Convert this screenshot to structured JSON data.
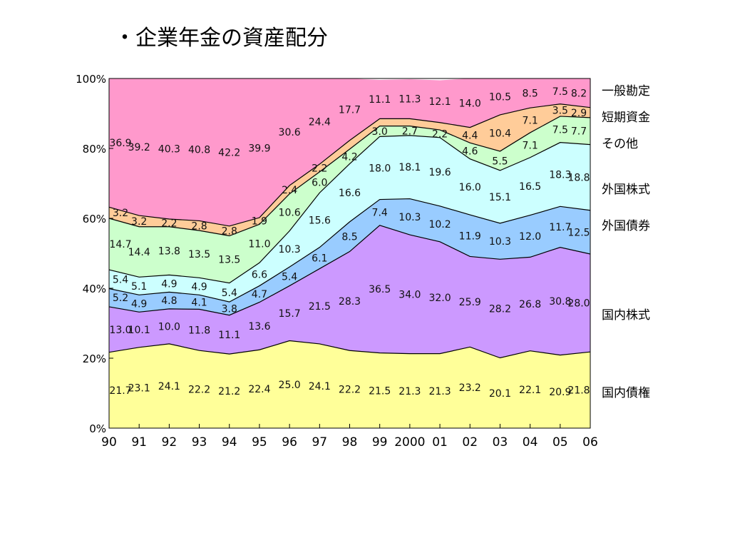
{
  "slide": {
    "title": "・企業年金の資産配分"
  },
  "chart_data": {
    "type": "area",
    "stacked": true,
    "title": "",
    "xlabel": "",
    "ylabel": "",
    "ylim": [
      0,
      100
    ],
    "y_ticks": [
      "0%",
      "20%",
      "40%",
      "60%",
      "80%",
      "100%"
    ],
    "categories": [
      "90",
      "91",
      "92",
      "93",
      "94",
      "95",
      "96",
      "97",
      "98",
      "99",
      "2000",
      "01",
      "02",
      "03",
      "04",
      "05",
      "06"
    ],
    "legend_position": "right",
    "series": [
      {
        "name": "国内債権",
        "color": "#ffff99",
        "values": [
          21.7,
          23.1,
          24.1,
          22.2,
          21.2,
          22.4,
          25.0,
          24.1,
          22.2,
          21.5,
          21.3,
          21.3,
          23.2,
          20.1,
          22.1,
          20.9,
          21.8
        ]
      },
      {
        "name": "国内株式",
        "color": "#cc99ff",
        "values": [
          13.0,
          10.1,
          10.0,
          11.8,
          11.1,
          13.6,
          15.7,
          21.5,
          28.3,
          36.5,
          34.0,
          32.0,
          25.9,
          28.2,
          26.8,
          30.8,
          28.0
        ]
      },
      {
        "name": "外国債券",
        "color": "#99ccff",
        "values": [
          5.2,
          4.9,
          4.8,
          4.1,
          3.8,
          4.7,
          5.4,
          6.1,
          8.5,
          7.4,
          10.3,
          10.2,
          11.9,
          10.3,
          12.0,
          11.7,
          12.5
        ]
      },
      {
        "name": "外国株式",
        "color": "#ccffff",
        "values": [
          5.4,
          5.1,
          4.9,
          4.9,
          5.4,
          6.6,
          10.3,
          15.6,
          16.6,
          18.0,
          18.1,
          19.6,
          16.0,
          15.1,
          16.5,
          18.3,
          18.8
        ]
      },
      {
        "name": "その他",
        "color": "#ccffcc",
        "values": [
          14.7,
          14.4,
          13.8,
          13.5,
          13.5,
          11.0,
          10.6,
          6.0,
          4.2,
          3.0,
          2.7,
          2.2,
          4.6,
          5.5,
          7.1,
          7.5,
          7.7
        ]
      },
      {
        "name": "短期資金",
        "color": "#ffcc99",
        "values": [
          3.2,
          3.2,
          2.2,
          2.8,
          2.8,
          1.9,
          2.4,
          2.2,
          2.5,
          2.1,
          2.1,
          2.1,
          4.4,
          10.4,
          7.1,
          3.5,
          2.9
        ]
      },
      {
        "name": "一般勘定",
        "color": "#ff99cc",
        "values": [
          36.9,
          39.2,
          40.3,
          40.8,
          42.2,
          39.9,
          30.6,
          24.4,
          17.7,
          11.1,
          11.3,
          12.1,
          14.0,
          10.5,
          8.5,
          7.5,
          8.2
        ]
      }
    ],
    "value_labels": [
      [
        "21.7",
        "23.1",
        "24.1",
        "22.2",
        "21.2",
        "22.4",
        "25.0",
        "24.1",
        "22.2",
        "21.5",
        "21.3",
        "21.3",
        "23.2",
        "20.1",
        "22.1",
        "20.9",
        "21.8"
      ],
      [
        "13.0",
        "10.1",
        "10.0",
        "11.8",
        "11.1",
        "13.6",
        "15.7",
        "21.5",
        "28.3",
        "36.5",
        "34.0",
        "32.0",
        "25.9",
        "28.2",
        "26.8",
        "30.8",
        "28.0"
      ],
      [
        "5.2",
        "4.9",
        "4.8",
        "4.1",
        "3.8",
        "4.7",
        "5.4",
        "6.1",
        "8.5",
        "7.4",
        "10.3",
        "10.2",
        "11.9",
        "10.3",
        "12.0",
        "11.7",
        "12.5"
      ],
      [
        "5.4",
        "5.1",
        "4.9",
        "4.9",
        "5.4",
        "6.6",
        "10.3",
        "15.6",
        "16.6",
        "18.0",
        "18.1",
        "19.6",
        "16.0",
        "15.1",
        "16.5",
        "18.3",
        "18.8"
      ],
      [
        "14.7",
        "14.4",
        "13.8",
        "13.5",
        "13.5",
        "11.0",
        "10.6",
        "6.0",
        "4.2",
        "3.0",
        "2.7",
        "2.2",
        "4.6",
        "5.5",
        "7.1",
        "7.5",
        "7.7"
      ],
      [
        "3.2",
        "3.2",
        "2.2",
        "2.8",
        "2.8",
        "1.9",
        "2.4",
        "2.2",
        "",
        "",
        "",
        "",
        "4.4",
        "10.4",
        "7.1",
        "3.5",
        "2.9"
      ],
      [
        "36.9",
        "39.2",
        "40.3",
        "40.8",
        "42.2",
        "39.9",
        "30.6",
        "24.4",
        "17.7",
        "11.1",
        "11.3",
        "12.1",
        "14.0",
        "10.5",
        "8.5",
        "7.5",
        "8.2"
      ]
    ],
    "grid": false,
    "border_color": "#000000"
  }
}
